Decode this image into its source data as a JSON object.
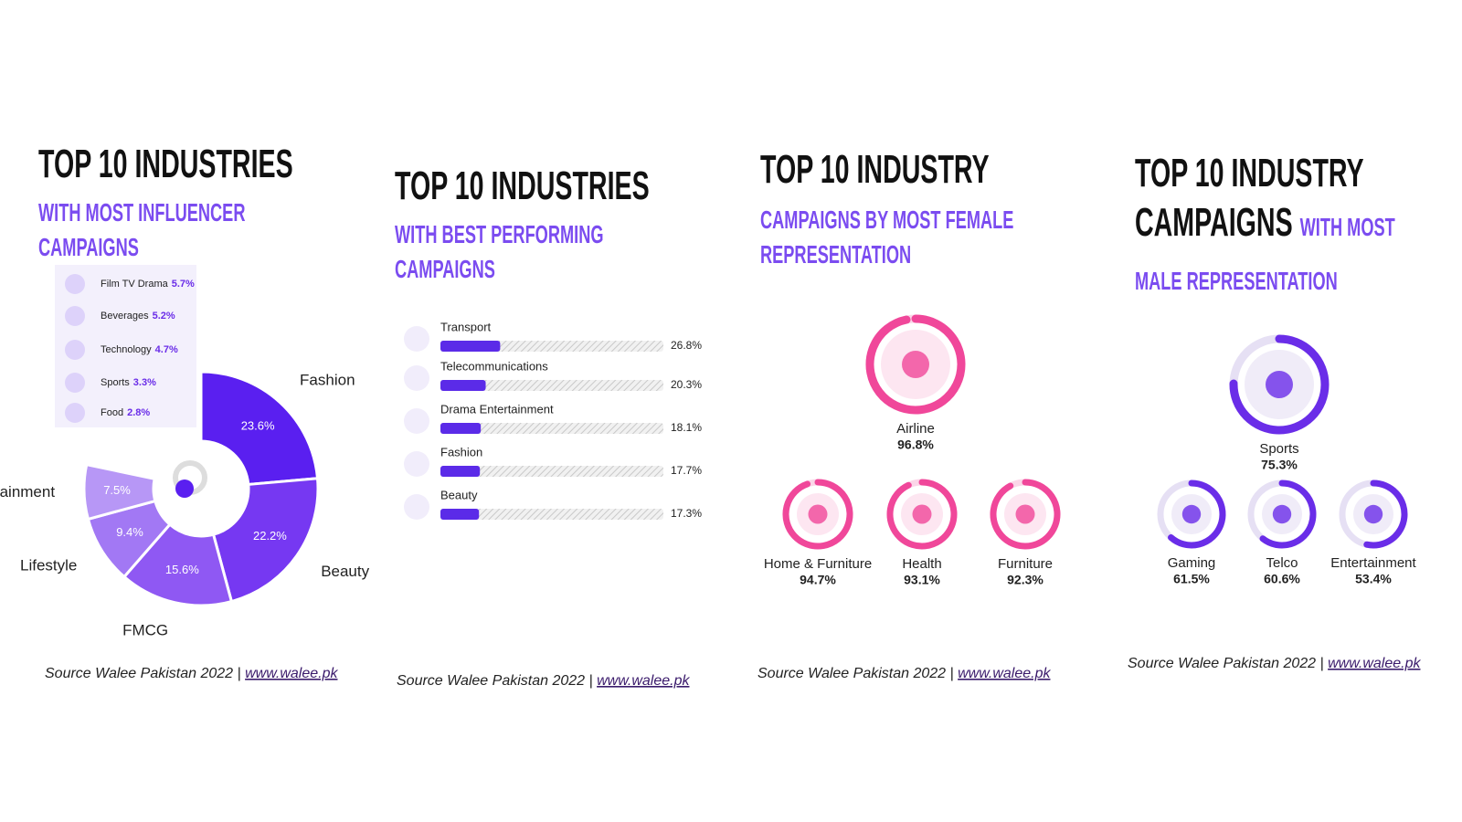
{
  "chart_data": [
    {
      "type": "pie",
      "title": "TOP 10 INDUSTRIES",
      "subtitle": "WITH MOST INFLUENCER CAMPAIGNS",
      "categories": [
        "Fashion",
        "Beauty",
        "FMCG",
        "Lifestyle",
        "Entertainment"
      ],
      "values": [
        23.6,
        22.2,
        15.6,
        9.4,
        7.5
      ],
      "value_labels": [
        "23.6%",
        "22.2%",
        "15.6%",
        "9.4%",
        "7.5%"
      ],
      "colors": [
        "#5a1ff0",
        "#7638f2",
        "#8f58f3",
        "#a278f4",
        "#b797f6"
      ],
      "others": {
        "categories": [
          "Film TV Drama",
          "Beverages",
          "Technology",
          "Sports",
          "Food"
        ],
        "values": [
          5.7,
          5.2,
          4.7,
          3.3,
          2.8
        ],
        "value_labels": [
          "5.7%",
          "5.2%",
          "4.7%",
          "3.3%",
          "2.8%"
        ]
      },
      "source": "Source Walee Pakistan 2022 | ",
      "link": "www.walee.pk"
    },
    {
      "type": "bar",
      "title": "TOP 10 INDUSTRIES",
      "subtitle": "WITH BEST PERFORMING CAMPAIGNS",
      "categories": [
        "Transport",
        "Telecommunications",
        "Drama Entertainment",
        "Fashion",
        "Beauty"
      ],
      "values": [
        26.8,
        20.3,
        18.1,
        17.7,
        17.3
      ],
      "value_labels": [
        "26.8%",
        "20.3%",
        "18.1%",
        "17.7%",
        "17.3%"
      ],
      "color": "#5b2be8",
      "xlim": [
        0,
        100
      ],
      "source": "Source Walee Pakistan 2022 | ",
      "link": "www.walee.pk"
    },
    {
      "type": "radial",
      "title": "TOP 10 INDUSTRY",
      "subtitle": "CAMPAIGNS BY MOST FEMALE REPRESENTATION",
      "categories": [
        "Airline",
        "Home & Furniture",
        "Health",
        "Furniture"
      ],
      "values": [
        96.8,
        94.7,
        93.1,
        92.3
      ],
      "value_labels": [
        "96.8%",
        "94.7%",
        "93.1%",
        "92.3%"
      ],
      "color": "#f0479a",
      "track_color": "#fbd6e8",
      "ylim": [
        0,
        100
      ],
      "source": "Source Walee Pakistan 2022 | ",
      "link": "www.walee.pk"
    },
    {
      "type": "radial",
      "title": "TOP 10 INDUSTRY CAMPAIGNS",
      "subtitle": "WITH MOST MALE REPRESENTATION",
      "categories": [
        "Sports",
        "Gaming",
        "Telco",
        "Entertainment"
      ],
      "values": [
        75.3,
        61.5,
        60.6,
        53.4
      ],
      "value_labels": [
        "75.3%",
        "61.5%",
        "60.6%",
        "53.4%"
      ],
      "color": "#6a2de8",
      "track_color": "#e6e0f4",
      "ylim": [
        0,
        100
      ],
      "source": "Source Walee Pakistan 2022 | ",
      "link": "www.walee.pk"
    }
  ]
}
